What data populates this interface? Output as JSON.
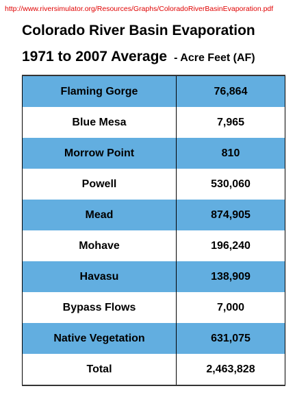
{
  "source_url": "http://www.riversimulator.org/Resources/Graphs/ColoradoRiverBasinEvaporation.pdf",
  "title_line1": "Colorado River Basin Evaporation",
  "title_line2": "1971 to 2007 Average",
  "units": "- Acre Feet (AF)",
  "band_color": "#62aee0",
  "rows": [
    {
      "name": "Flaming Gorge",
      "value": "76,864"
    },
    {
      "name": "Blue Mesa",
      "value": "7,965"
    },
    {
      "name": "Morrow Point",
      "value": "810"
    },
    {
      "name": "Powell",
      "value": "530,060"
    },
    {
      "name": "Mead",
      "value": "874,905"
    },
    {
      "name": "Mohave",
      "value": "196,240"
    },
    {
      "name": "Havasu",
      "value": "138,909"
    },
    {
      "name": "Bypass Flows",
      "value": "7,000"
    },
    {
      "name": "Native Vegetation",
      "value": "631,075"
    },
    {
      "name": "Total",
      "value": "2,463,828"
    }
  ]
}
